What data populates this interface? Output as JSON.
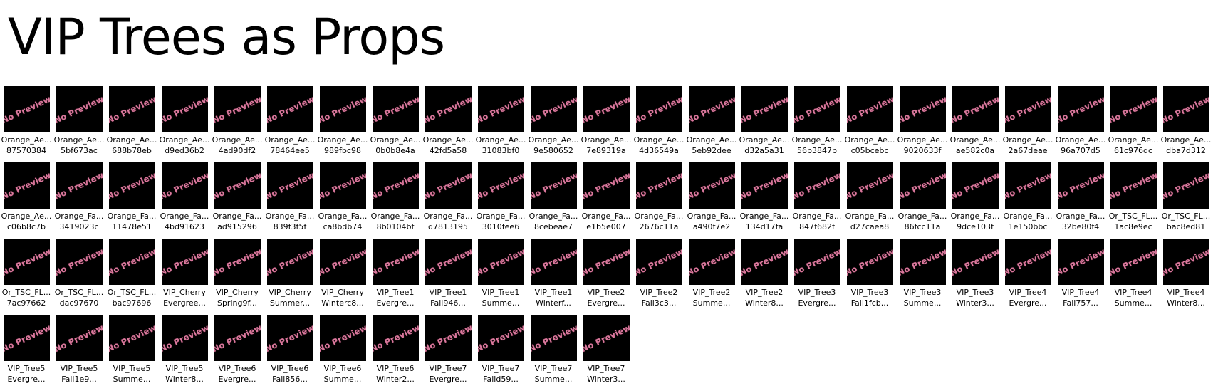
{
  "title": "VIP Trees as Props",
  "thumbnail_text": "No Preview",
  "items": [
    [
      "Orange_Ae...",
      "87570384"
    ],
    [
      "Orange_Ae...",
      "5bf673ac"
    ],
    [
      "Orange_Ae...",
      "688b78eb"
    ],
    [
      "Orange_Ae...",
      "d9ed36b2"
    ],
    [
      "Orange_Ae...",
      "4ad90df2"
    ],
    [
      "Orange_Ae...",
      "78464ee5"
    ],
    [
      "Orange_Ae...",
      "989fbc98"
    ],
    [
      "Orange_Ae...",
      "0b0b8e4a"
    ],
    [
      "Orange_Ae...",
      "42fd5a58"
    ],
    [
      "Orange_Ae...",
      "31083bf0"
    ],
    [
      "Orange_Ae...",
      "9e580652"
    ],
    [
      "Orange_Ae...",
      "7e89319a"
    ],
    [
      "Orange_Ae...",
      "4d36549a"
    ],
    [
      "Orange_Ae...",
      "5eb92dee"
    ],
    [
      "Orange_Ae...",
      "d32a5a31"
    ],
    [
      "Orange_Ae...",
      "56b3847b"
    ],
    [
      "Orange_Ae...",
      "c05bcebc"
    ],
    [
      "Orange_Ae...",
      "9020633f"
    ],
    [
      "Orange_Ae...",
      "ae582c0a"
    ],
    [
      "Orange_Ae...",
      "2a67deae"
    ],
    [
      "Orange_Ae...",
      "96a707d5"
    ],
    [
      "Orange_Ae...",
      "61c976dc"
    ],
    [
      "Orange_Ae...",
      "dba7d312"
    ],
    [
      "Orange_Ae...",
      "c06b8c7b"
    ],
    [
      "Orange_Fa...",
      "3419023c"
    ],
    [
      "Orange_Fa...",
      "11478e51"
    ],
    [
      "Orange_Fa...",
      "4bd91623"
    ],
    [
      "Orange_Fa...",
      "ad915296"
    ],
    [
      "Orange_Fa...",
      "839f3f5f"
    ],
    [
      "Orange_Fa...",
      "ca8bdb74"
    ],
    [
      "Orange_Fa...",
      "8b0104bf"
    ],
    [
      "Orange_Fa...",
      "d7813195"
    ],
    [
      "Orange_Fa...",
      "3010fee6"
    ],
    [
      "Orange_Fa...",
      "8cebeae7"
    ],
    [
      "Orange_Fa...",
      "e1b5e007"
    ],
    [
      "Orange_Fa...",
      "2676c11a"
    ],
    [
      "Orange_Fa...",
      "a490f7e2"
    ],
    [
      "Orange_Fa...",
      "134d17fa"
    ],
    [
      "Orange_Fa...",
      "847f682f"
    ],
    [
      "Orange_Fa...",
      "d27caea8"
    ],
    [
      "Orange_Fa...",
      "86fcc11a"
    ],
    [
      "Orange_Fa...",
      "9dce103f"
    ],
    [
      "Orange_Fa...",
      "1e150bbc"
    ],
    [
      "Orange_Fa...",
      "32be80f4"
    ],
    [
      "Or_TSC_FL...",
      "1ac8e9ec"
    ],
    [
      "Or_TSC_FL...",
      "bac8ed81"
    ],
    [
      "Or_TSC_FL...",
      "7ac97662"
    ],
    [
      "Or_TSC_FL...",
      "dac97670"
    ],
    [
      "Or_TSC_FL...",
      "bac97696"
    ],
    [
      "VIP_Cherry",
      "Evergree..."
    ],
    [
      "VIP_Cherry",
      "Spring9f..."
    ],
    [
      "VIP_Cherry",
      "Summer..."
    ],
    [
      "VIP_Cherry",
      "Winterc8..."
    ],
    [
      "VIP_Tree1",
      "Evergre..."
    ],
    [
      "VIP_Tree1",
      "Fall946..."
    ],
    [
      "VIP_Tree1",
      "Summe..."
    ],
    [
      "VIP_Tree1",
      "Winterf..."
    ],
    [
      "VIP_Tree2",
      "Evergre..."
    ],
    [
      "VIP_Tree2",
      "Fall3c3..."
    ],
    [
      "VIP_Tree2",
      "Summe..."
    ],
    [
      "VIP_Tree2",
      "Winter8..."
    ],
    [
      "VIP_Tree3",
      "Evergre..."
    ],
    [
      "VIP_Tree3",
      "Fall1fcb..."
    ],
    [
      "VIP_Tree3",
      "Summe..."
    ],
    [
      "VIP_Tree3",
      "Winter3..."
    ],
    [
      "VIP_Tree4",
      "Evergre..."
    ],
    [
      "VIP_Tree4",
      "Fall757..."
    ],
    [
      "VIP_Tree4",
      "Summe..."
    ],
    [
      "VIP_Tree4",
      "Winter8..."
    ],
    [
      "VIP_Tree5",
      "Evergre..."
    ],
    [
      "VIP_Tree5",
      "Fall1e9..."
    ],
    [
      "VIP_Tree5",
      "Summe..."
    ],
    [
      "VIP_Tree5",
      "Winter8..."
    ],
    [
      "VIP_Tree6",
      "Evergre..."
    ],
    [
      "VIP_Tree6",
      "Fall856..."
    ],
    [
      "VIP_Tree6",
      "Summe..."
    ],
    [
      "VIP_Tree6",
      "Winter2..."
    ],
    [
      "VIP_Tree7",
      "Evergre..."
    ],
    [
      "VIP_Tree7",
      "Falld59..."
    ],
    [
      "VIP_Tree7",
      "Summe..."
    ],
    [
      "VIP_Tree7",
      "Winter3..."
    ]
  ]
}
